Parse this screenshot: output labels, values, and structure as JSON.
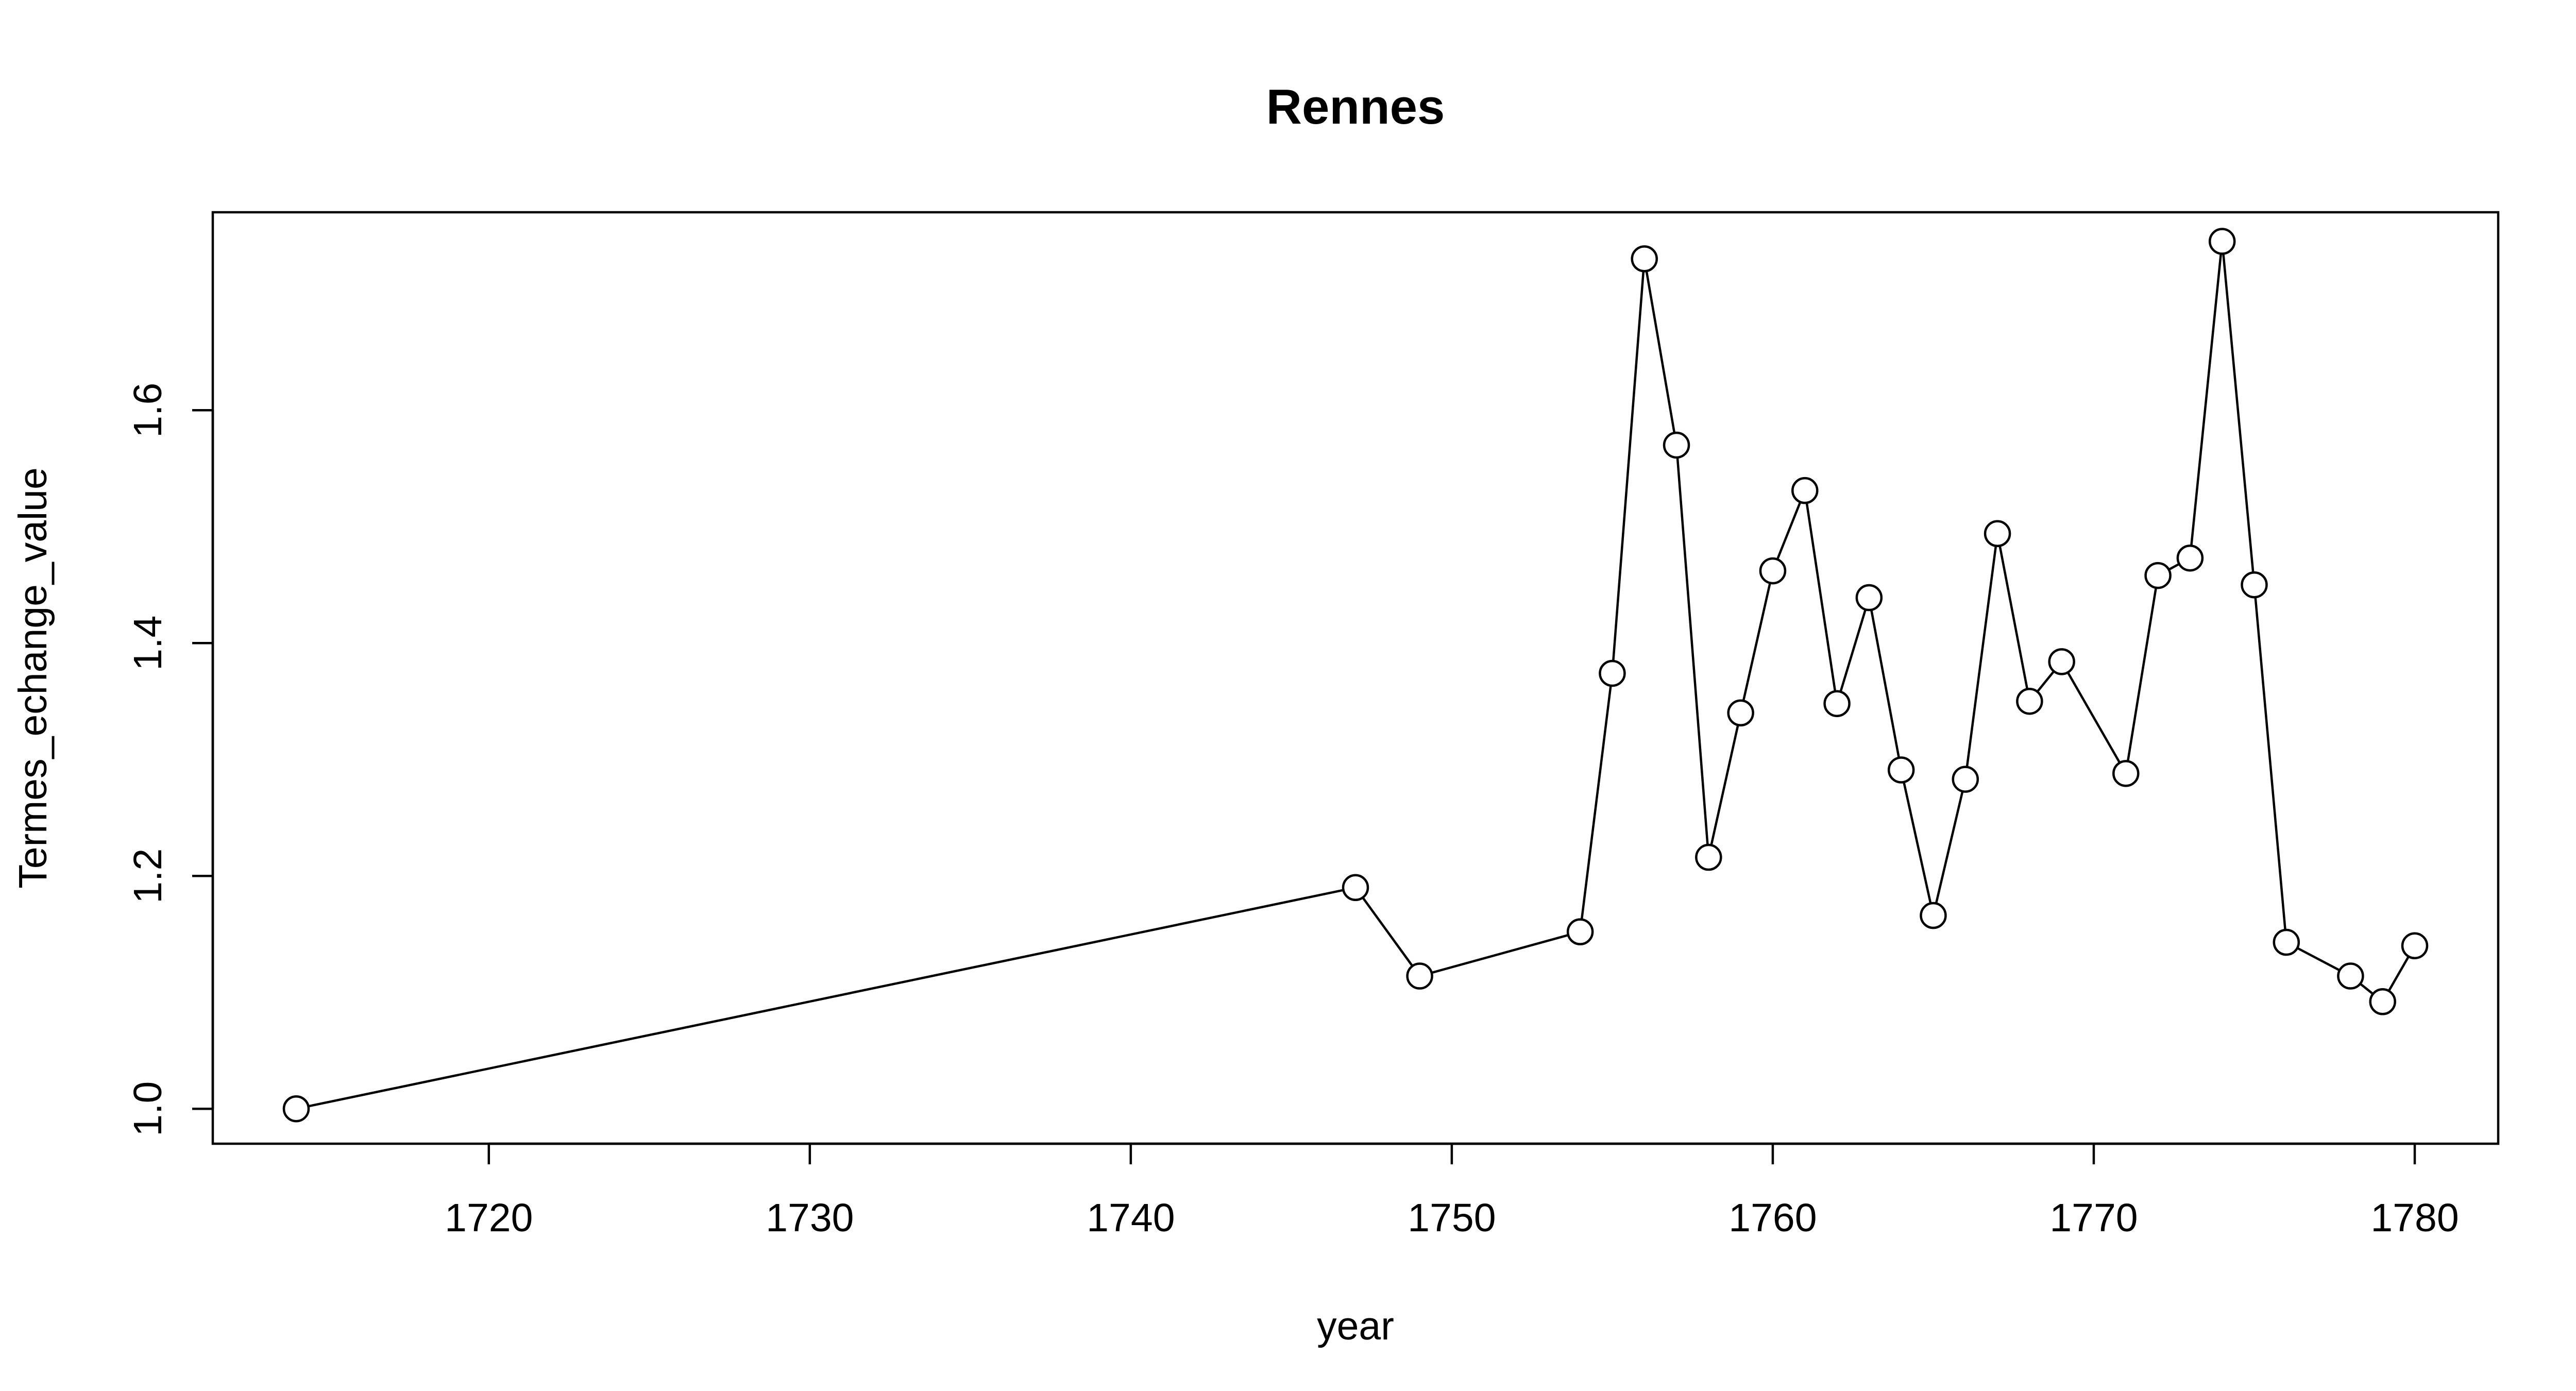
{
  "chart_data": {
    "type": "line",
    "title": "Rennes",
    "xlabel": "year",
    "ylabel": "Termes_echange_value",
    "xlim": [
      1711.4,
      1782.6
    ],
    "ylim": [
      0.97,
      1.77
    ],
    "x_ticks": [
      1720,
      1730,
      1740,
      1750,
      1760,
      1770,
      1780
    ],
    "y_ticks": [
      1.0,
      1.2,
      1.4,
      1.6
    ],
    "y_tick_labels": [
      "1.0",
      "1.2",
      "1.4",
      "1.6"
    ],
    "grid": false,
    "series": [
      {
        "points": [
          [
            1714,
            1.0
          ],
          [
            1747,
            1.19
          ],
          [
            1749,
            1.114
          ],
          [
            1754,
            1.152
          ],
          [
            1755,
            1.374
          ],
          [
            1756,
            1.73
          ],
          [
            1757,
            1.57
          ],
          [
            1758,
            1.216
          ],
          [
            1759,
            1.34
          ],
          [
            1760,
            1.462
          ],
          [
            1761,
            1.531
          ],
          [
            1762,
            1.348
          ],
          [
            1763,
            1.439
          ],
          [
            1764,
            1.291
          ],
          [
            1765,
            1.166
          ],
          [
            1766,
            1.283
          ],
          [
            1767,
            1.494
          ],
          [
            1768,
            1.35
          ],
          [
            1769,
            1.384
          ],
          [
            1771,
            1.288
          ],
          [
            1772,
            1.458
          ],
          [
            1773,
            1.473
          ],
          [
            1774,
            1.745
          ],
          [
            1775,
            1.45
          ],
          [
            1776,
            1.143
          ],
          [
            1778,
            1.114
          ],
          [
            1779,
            1.092
          ],
          [
            1780,
            1.14
          ]
        ]
      }
    ]
  }
}
